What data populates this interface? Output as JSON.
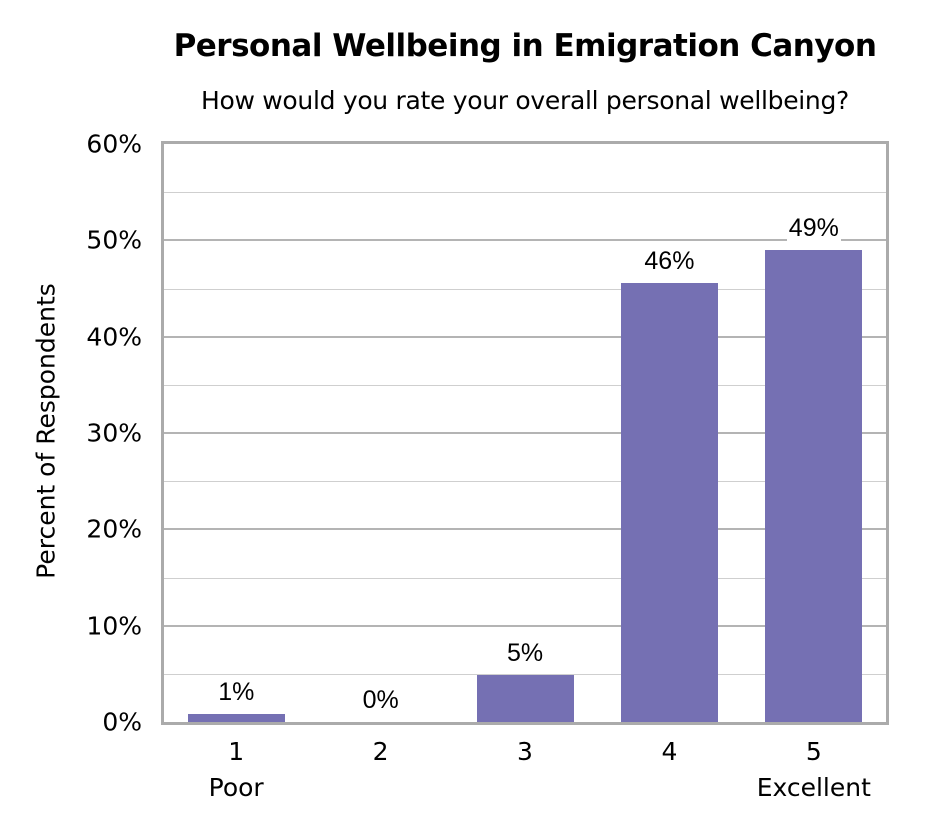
{
  "chart_data": {
    "type": "bar",
    "title": "Personal Wellbeing in Emigration Canyon",
    "subtitle": "How would you rate your overall personal wellbeing?",
    "xlabel": "",
    "ylabel": "Percent of Respondents",
    "categories": [
      "1",
      "2",
      "3",
      "4",
      "5"
    ],
    "category_sublabels": [
      "Poor",
      "",
      "",
      "",
      "Excellent"
    ],
    "values": [
      1,
      0,
      5,
      46,
      49
    ],
    "plot_values": [
      0.8,
      0,
      4.9,
      45.6,
      49.0
    ],
    "data_labels": [
      "1%",
      "0%",
      "5%",
      "46%",
      "49%"
    ],
    "ylim": [
      0,
      60
    ],
    "yticks": [
      0,
      10,
      20,
      30,
      40,
      50,
      60
    ],
    "ytick_labels": [
      "0%",
      "10%",
      "20%",
      "30%",
      "40%",
      "50%",
      "60%"
    ],
    "grid": true,
    "legend": null,
    "bar_color": "#7570b3"
  }
}
